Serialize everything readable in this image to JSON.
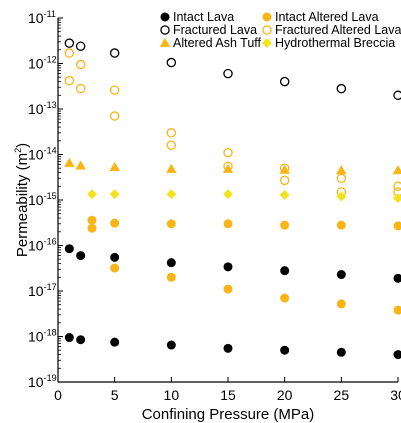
{
  "chart_data": {
    "type": "scatter",
    "xlabel": "Confining Pressure (MPa)",
    "ylabel_base": "Permeability (m",
    "ylabel_sup": "2",
    "ylabel_end": ")",
    "xlim": [
      0,
      30
    ],
    "ylim": [
      1e-19,
      1e-11
    ],
    "yscale": "log",
    "x_ticks": [
      0,
      5,
      10,
      15,
      20,
      25,
      30
    ],
    "y_ticks": [
      {
        "mantissa": "10",
        "exp": "-11",
        "value": 1e-11
      },
      {
        "mantissa": "10",
        "exp": "-12",
        "value": 1e-12
      },
      {
        "mantissa": "10",
        "exp": "-13",
        "value": 1e-13
      },
      {
        "mantissa": "10",
        "exp": "-14",
        "value": 1e-14
      },
      {
        "mantissa": "10",
        "exp": "-15",
        "value": 1e-15
      },
      {
        "mantissa": "10",
        "exp": "-16",
        "value": 1e-16
      },
      {
        "mantissa": "10",
        "exp": "-17",
        "value": 1e-17
      },
      {
        "mantissa": "10",
        "exp": "-18",
        "value": 1e-18
      },
      {
        "mantissa": "10",
        "exp": "-19",
        "value": 1e-19
      }
    ],
    "legend_placement": "top-right",
    "colors": {
      "black": "#000000",
      "orange": "#f9b516",
      "yellow": "#f2e321"
    },
    "series": [
      {
        "name": "Intact Lava",
        "marker": "circle-filled",
        "color": "#000000",
        "points": [
          [
            1,
            8.5e-17
          ],
          [
            2,
            6e-17
          ],
          [
            5,
            5.5e-17
          ],
          [
            10,
            4.2e-17
          ],
          [
            15,
            3.4e-17
          ],
          [
            20,
            2.8e-17
          ],
          [
            25,
            2.3e-17
          ],
          [
            30,
            1.9e-17
          ],
          [
            1,
            9.5e-19
          ],
          [
            2,
            8.5e-19
          ],
          [
            5,
            7.5e-19
          ],
          [
            10,
            6.5e-19
          ],
          [
            15,
            5.5e-19
          ],
          [
            20,
            5e-19
          ],
          [
            25,
            4.5e-19
          ],
          [
            30,
            4e-19
          ]
        ]
      },
      {
        "name": "Fractured Lava",
        "marker": "circle-open",
        "color": "#000000",
        "points": [
          [
            1,
            2.8e-12
          ],
          [
            2,
            2.4e-12
          ],
          [
            5,
            1.7e-12
          ],
          [
            10,
            1.05e-12
          ],
          [
            15,
            6e-13
          ],
          [
            20,
            4e-13
          ],
          [
            25,
            2.8e-13
          ],
          [
            30,
            2e-13
          ]
        ]
      },
      {
        "name": "Intact Altered Lava",
        "marker": "circle-filled",
        "color": "#f9b516",
        "points": [
          [
            3,
            3.6e-16
          ],
          [
            3,
            2.4e-16
          ],
          [
            5,
            3.1e-16
          ],
          [
            10,
            3e-16
          ],
          [
            15,
            3e-16
          ],
          [
            20,
            2.8e-16
          ],
          [
            25,
            2.8e-16
          ],
          [
            30,
            2.7e-16
          ],
          [
            5,
            3.2e-17
          ],
          [
            10,
            2e-17
          ],
          [
            15,
            1.1e-17
          ],
          [
            20,
            7e-18
          ],
          [
            25,
            5.2e-18
          ],
          [
            30,
            3.8e-18
          ]
        ]
      },
      {
        "name": "Fractured Altered Lava",
        "marker": "circle-open",
        "color": "#f9b516",
        "points": [
          [
            1,
            1.7e-12
          ],
          [
            2,
            9.5e-13
          ],
          [
            1,
            4.2e-13
          ],
          [
            2,
            2.8e-13
          ],
          [
            5,
            2.6e-13
          ],
          [
            5,
            7e-14
          ],
          [
            10,
            3e-14
          ],
          [
            10,
            1.6e-14
          ],
          [
            15,
            1.1e-14
          ],
          [
            15,
            5.5e-15
          ],
          [
            20,
            5e-15
          ],
          [
            20,
            2.7e-15
          ],
          [
            25,
            3e-15
          ],
          [
            25,
            1.5e-15
          ],
          [
            30,
            2e-15
          ],
          [
            30,
            1.5e-15
          ]
        ]
      },
      {
        "name": "Altered Ash Tuff",
        "marker": "triangle-filled",
        "color": "#f9b516",
        "points": [
          [
            1,
            6.5e-15
          ],
          [
            2,
            5.7e-15
          ],
          [
            5,
            5.3e-15
          ],
          [
            10,
            4.8e-15
          ],
          [
            15,
            4.8e-15
          ],
          [
            20,
            4.6e-15
          ],
          [
            25,
            4.5e-15
          ],
          [
            30,
            4.5e-15
          ]
        ]
      },
      {
        "name": "Hydrothermal Breccia",
        "marker": "diamond-filled",
        "color": "#f2e321",
        "points": [
          [
            3,
            1.35e-15
          ],
          [
            5,
            1.35e-15
          ],
          [
            10,
            1.35e-15
          ],
          [
            15,
            1.35e-15
          ],
          [
            20,
            1.3e-15
          ],
          [
            25,
            1.2e-15
          ],
          [
            30,
            1.1e-15
          ]
        ]
      }
    ]
  }
}
